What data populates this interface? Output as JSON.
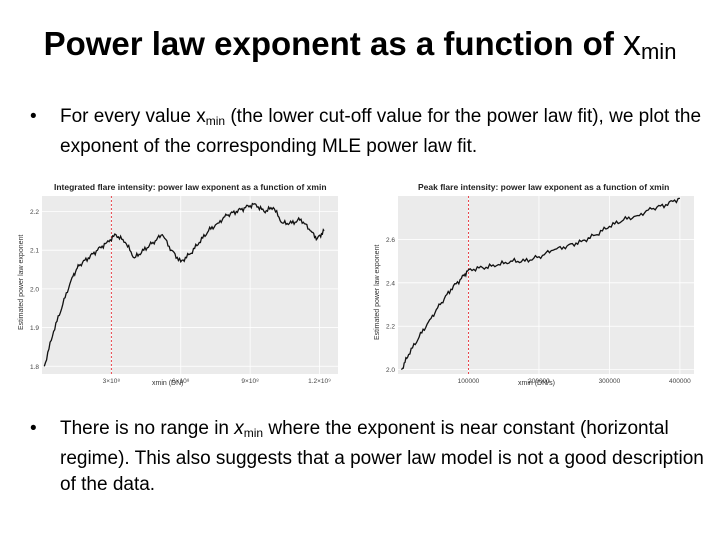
{
  "slide": {
    "title_text": "Power law exponent as a function of ",
    "title_var": "x",
    "title_sub": "min",
    "bullet1": {
      "dot": "•",
      "pre": "For every value ",
      "var": "x",
      "sub": "min",
      "post": " (the lower cut-off value for the power law fit), we plot the exponent of the corresponding MLE power law fit."
    },
    "bullet2": {
      "dot": "•",
      "pre": "There is no range in ",
      "var": "x",
      "sub": "min",
      "post": " where the exponent is near constant (horizontal regime). This also suggests that a power law model is not a good description of the data."
    }
  },
  "chart_data": [
    {
      "type": "line",
      "title": "Integrated flare intensity: power law exponent as a function of xmin",
      "xlabel": "xmin (DN)",
      "ylabel": "Estimated power law exponent",
      "x_tick_labels": [
        "3×10⁸",
        "6×10⁸",
        "9×10⁸",
        "1.2×10⁹"
      ],
      "x_ticks": [
        300000000,
        600000000,
        900000000,
        1200000000
      ],
      "xlim": [
        0,
        1280000000
      ],
      "ylim": [
        1.78,
        2.24
      ],
      "y_ticks": [
        1.8,
        1.9,
        2.0,
        2.1,
        2.2
      ],
      "y_tick_labels": [
        "1.8",
        "1.9",
        "2.0",
        "2.1",
        "2.2"
      ],
      "vline": 300000000,
      "vline_color": "#e8343c",
      "series": [
        {
          "x": [
            10000000,
            50000000,
            90000000,
            130000000,
            160000000,
            200000000,
            240000000,
            280000000,
            320000000,
            360000000,
            400000000,
            440000000,
            480000000,
            520000000,
            560000000,
            600000000,
            640000000,
            680000000,
            720000000,
            760000000,
            800000000,
            840000000,
            880000000,
            920000000,
            960000000,
            1000000000,
            1040000000,
            1080000000,
            1120000000,
            1160000000,
            1190000000,
            1220000000
          ],
          "values": [
            1.8,
            1.89,
            1.96,
            2.03,
            2.06,
            2.08,
            2.1,
            2.12,
            2.14,
            2.12,
            2.08,
            2.1,
            2.12,
            2.14,
            2.1,
            2.07,
            2.09,
            2.12,
            2.15,
            2.17,
            2.19,
            2.2,
            2.21,
            2.22,
            2.2,
            2.21,
            2.17,
            2.17,
            2.18,
            2.15,
            2.13,
            2.15
          ]
        }
      ]
    },
    {
      "type": "line",
      "title": "Peak flare intensity: power law exponent as a function of xmin",
      "xlabel": "xmin (DN/s)",
      "ylabel": "Estimated power law exponent",
      "x_ticks": [
        100000,
        200000,
        300000,
        400000
      ],
      "x_tick_labels": [
        "100000",
        "200000",
        "300000",
        "400000"
      ],
      "xlim": [
        0,
        420000
      ],
      "ylim": [
        1.98,
        2.8
      ],
      "y_ticks": [
        2.0,
        2.2,
        2.4,
        2.6
      ],
      "y_tick_labels": [
        "2.0",
        "2.2",
        "2.4",
        "2.6"
      ],
      "vline": 100000,
      "vline_color": "#e8343c",
      "series": [
        {
          "x": [
            5000,
            15000,
            30000,
            45000,
            60000,
            75000,
            90000,
            100000,
            120000,
            140000,
            160000,
            180000,
            200000,
            220000,
            240000,
            260000,
            280000,
            300000,
            320000,
            340000,
            360000,
            380000,
            400000
          ],
          "values": [
            2.0,
            2.07,
            2.15,
            2.23,
            2.3,
            2.37,
            2.42,
            2.46,
            2.47,
            2.48,
            2.5,
            2.5,
            2.52,
            2.55,
            2.57,
            2.59,
            2.62,
            2.66,
            2.69,
            2.71,
            2.74,
            2.76,
            2.79
          ]
        }
      ]
    }
  ]
}
